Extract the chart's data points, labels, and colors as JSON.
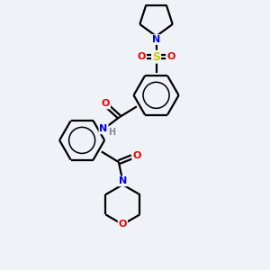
{
  "bg_color": "#eff2f7",
  "atom_colors": {
    "C": "#000000",
    "N": "#0000ee",
    "O": "#ee0000",
    "S": "#cccc00",
    "H": "#888888"
  },
  "bond_color": "#000000",
  "line_width": 1.6
}
